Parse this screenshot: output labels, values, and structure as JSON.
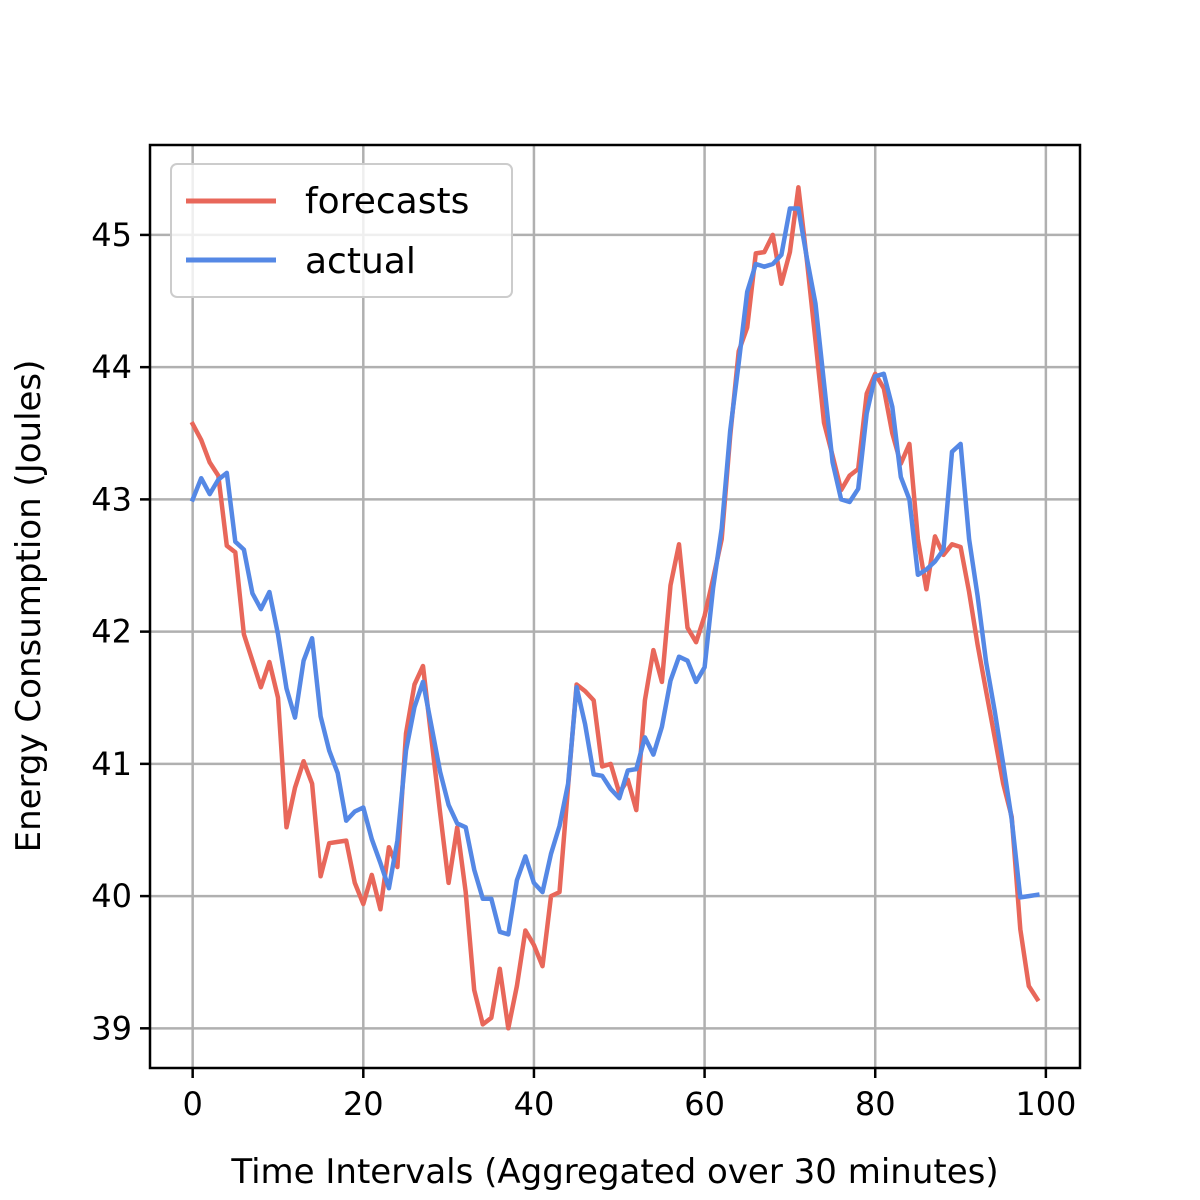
{
  "chart_data": {
    "type": "line",
    "title": "",
    "xlabel": "Time Intervals (Aggregated over 30 minutes)",
    "ylabel": "Energy Consumption (Joules)",
    "xlim": [
      -5,
      104
    ],
    "ylim": [
      38.7,
      45.68
    ],
    "xticks": [
      0,
      20,
      40,
      60,
      80,
      100
    ],
    "yticks": [
      39,
      40,
      41,
      42,
      43,
      44,
      45
    ],
    "grid": true,
    "legend_position": "top-left",
    "series": [
      {
        "name": "forecasts",
        "color": "#e8675a",
        "x": [
          0,
          1,
          2,
          3,
          4,
          5,
          6,
          7,
          8,
          9,
          10,
          11,
          12,
          13,
          14,
          15,
          16,
          17,
          18,
          19,
          20,
          21,
          22,
          23,
          24,
          25,
          26,
          27,
          28,
          29,
          30,
          31,
          32,
          33,
          34,
          35,
          36,
          37,
          38,
          39,
          40,
          41,
          42,
          43,
          44,
          45,
          46,
          47,
          48,
          49,
          50,
          51,
          52,
          53,
          54,
          55,
          56,
          57,
          58,
          59,
          60,
          61,
          62,
          63,
          64,
          65,
          66,
          67,
          68,
          69,
          70,
          71,
          72,
          73,
          74,
          75,
          76,
          77,
          78,
          79,
          80,
          81,
          82,
          83,
          84,
          85,
          86,
          87,
          88,
          89,
          90,
          91,
          92,
          93,
          94,
          95,
          96,
          97,
          98,
          99
        ],
        "y": [
          43.57,
          43.45,
          43.28,
          43.18,
          42.65,
          42.6,
          41.98,
          41.78,
          41.58,
          41.77,
          41.5,
          40.52,
          40.82,
          41.02,
          40.85,
          40.15,
          40.4,
          40.41,
          40.42,
          40.1,
          39.94,
          40.16,
          39.9,
          40.37,
          40.22,
          41.23,
          41.6,
          41.74,
          41.18,
          40.63,
          40.1,
          40.52,
          40.03,
          39.29,
          39.03,
          39.08,
          39.45,
          39.0,
          39.32,
          39.74,
          39.63,
          39.47,
          40.0,
          40.03,
          40.83,
          41.6,
          41.55,
          41.48,
          40.98,
          41.0,
          40.78,
          40.88,
          40.65,
          41.48,
          41.86,
          41.62,
          42.35,
          42.66,
          42.03,
          41.92,
          42.12,
          42.4,
          42.7,
          43.48,
          44.12,
          44.3,
          44.86,
          44.87,
          45.0,
          44.63,
          44.87,
          45.36,
          44.8,
          44.2,
          43.58,
          43.33,
          43.07,
          43.18,
          43.23,
          43.8,
          43.95,
          43.84,
          43.5,
          43.27,
          43.42,
          42.7,
          42.32,
          42.72,
          42.58,
          42.66,
          42.64,
          42.3,
          41.9,
          41.55,
          41.2,
          40.85,
          40.6,
          39.75,
          39.32,
          39.22
        ]
      },
      {
        "name": "actual",
        "color": "#5588e5",
        "x": [
          0,
          1,
          2,
          3,
          4,
          5,
          6,
          7,
          8,
          9,
          10,
          11,
          12,
          13,
          14,
          15,
          16,
          17,
          18,
          19,
          20,
          21,
          22,
          23,
          24,
          25,
          26,
          27,
          28,
          29,
          30,
          31,
          32,
          33,
          34,
          35,
          36,
          37,
          38,
          39,
          40,
          41,
          42,
          43,
          44,
          45,
          46,
          47,
          48,
          49,
          50,
          51,
          52,
          53,
          54,
          55,
          56,
          57,
          58,
          59,
          60,
          61,
          62,
          63,
          64,
          65,
          66,
          67,
          68,
          69,
          70,
          71,
          72,
          73,
          74,
          75,
          76,
          77,
          78,
          79,
          80,
          81,
          82,
          83,
          84,
          85,
          86,
          87,
          88,
          89,
          90,
          91,
          92,
          93,
          94,
          95,
          96,
          97,
          98,
          99
        ],
        "y": [
          43.0,
          43.16,
          43.04,
          43.15,
          43.2,
          42.68,
          42.62,
          42.29,
          42.17,
          42.3,
          41.98,
          41.57,
          41.35,
          41.78,
          41.95,
          41.36,
          41.1,
          40.93,
          40.57,
          40.64,
          40.67,
          40.43,
          40.25,
          40.06,
          40.42,
          41.1,
          41.43,
          41.62,
          41.28,
          40.94,
          40.69,
          40.55,
          40.52,
          40.2,
          39.98,
          39.98,
          39.73,
          39.71,
          40.12,
          40.3,
          40.1,
          40.03,
          40.32,
          40.53,
          40.85,
          41.58,
          41.3,
          40.92,
          40.91,
          40.81,
          40.74,
          40.95,
          40.96,
          41.2,
          41.07,
          41.28,
          41.63,
          41.81,
          41.78,
          41.62,
          41.73,
          42.33,
          42.78,
          43.52,
          44.03,
          44.57,
          44.78,
          44.76,
          44.78,
          44.85,
          45.2,
          45.2,
          44.82,
          44.48,
          43.88,
          43.28,
          43.0,
          42.98,
          43.08,
          43.65,
          43.93,
          43.95,
          43.7,
          43.17,
          43.0,
          42.43,
          42.47,
          42.53,
          42.62,
          43.36,
          43.42,
          42.7,
          42.27,
          41.77,
          41.4,
          41.0,
          40.58,
          39.99,
          40.0,
          40.01
        ]
      }
    ]
  }
}
